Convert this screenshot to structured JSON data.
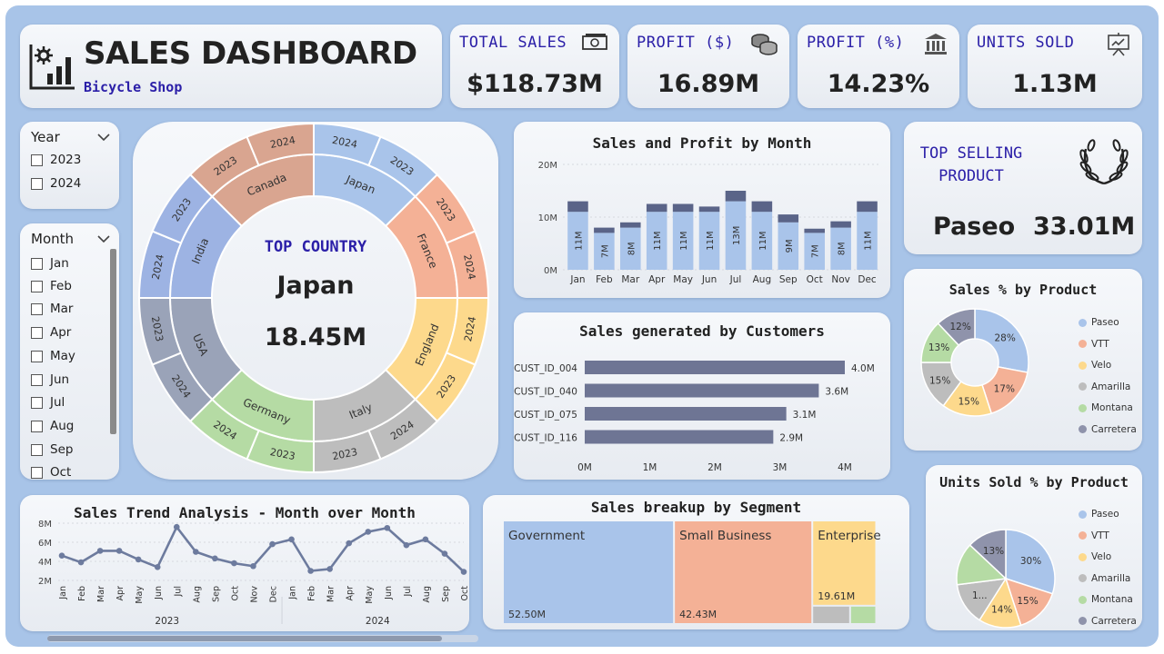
{
  "header": {
    "title": "SALES DASHBOARD",
    "subtitle": "Bicycle Shop"
  },
  "kpis": [
    {
      "title": "TOTAL SALES",
      "value": "$118.73M",
      "icon": "money-icon"
    },
    {
      "title": "PROFIT ($)",
      "value": "16.89M",
      "icon": "coins-icon"
    },
    {
      "title": "PROFIT (%)",
      "value": "14.23%",
      "icon": "bank-icon"
    },
    {
      "title": "UNITS SOLD",
      "value": "1.13M",
      "icon": "presentation-icon"
    }
  ],
  "year_slicer": {
    "title": "Year",
    "items": [
      "2023",
      "2024"
    ]
  },
  "month_slicer": {
    "title": "Month",
    "items": [
      "Jan",
      "Feb",
      "Mar",
      "Apr",
      "May",
      "Jun",
      "Jul",
      "Aug",
      "Sep",
      "Oct"
    ]
  },
  "top_country": {
    "label": "TOP COUNTRY",
    "name": "Japan",
    "value": "18.45M"
  },
  "sunburst": {
    "countries": [
      {
        "name": "Japan",
        "color": "#a9c4ea",
        "years": [
          "2024",
          "2023"
        ]
      },
      {
        "name": "France",
        "color": "#f4b196",
        "years": [
          "2023",
          "2024"
        ]
      },
      {
        "name": "England",
        "color": "#fdd98c",
        "years": [
          "2024",
          "2023"
        ]
      },
      {
        "name": "Italy",
        "color": "#bdbdbd",
        "years": [
          "2024",
          "2023"
        ]
      },
      {
        "name": "Germany",
        "color": "#b5dba4",
        "years": [
          "2023",
          "2024"
        ]
      },
      {
        "name": "USA",
        "color": "#9aa3b8",
        "years": [
          "2024",
          "2023"
        ]
      },
      {
        "name": "India",
        "color": "#9db3e3",
        "years": [
          "2024",
          "2023"
        ]
      },
      {
        "name": "Canada",
        "color": "#d9a590",
        "years": [
          "2023",
          "2024"
        ]
      }
    ]
  },
  "top_product": {
    "title_line1": "TOP SELLING",
    "title_line2": "PRODUCT",
    "name": "Paseo",
    "value": "33.01M"
  },
  "sales_customers": {
    "title": "Sales generated by Customers",
    "x_ticks": [
      "0M",
      "1M",
      "2M",
      "3M",
      "4M"
    ]
  },
  "sales_pct": {
    "title": "Sales % by Product"
  },
  "units_pct": {
    "title": "Units Sold % by Product"
  },
  "product_legend": [
    {
      "name": "Paseo",
      "color": "#a9c4ea"
    },
    {
      "name": "VTT",
      "color": "#f4b196"
    },
    {
      "name": "Velo",
      "color": "#fdd98c"
    },
    {
      "name": "Amarilla",
      "color": "#bdbdbd"
    },
    {
      "name": "Montana",
      "color": "#b5dba4"
    },
    {
      "name": "Carretera",
      "color": "#8f93ab"
    }
  ],
  "trend": {
    "title": "Sales Trend Analysis - Month over Month",
    "y_ticks": [
      "8M",
      "6M",
      "4M",
      "2M"
    ],
    "years": [
      "2023",
      "2024"
    ]
  },
  "segment": {
    "title": "Sales breakup by Segment"
  },
  "chart_data": [
    {
      "type": "bar",
      "title": "Sales and Profit by Month",
      "categories": [
        "Jan",
        "Feb",
        "Mar",
        "Apr",
        "May",
        "Jun",
        "Jul",
        "Aug",
        "Sep",
        "Oct",
        "Nov",
        "Dec"
      ],
      "series": [
        {
          "values": [
            11,
            7,
            8,
            11,
            11,
            11,
            13,
            11,
            9,
            7,
            8,
            11
          ],
          "color": "#a9c4ea"
        },
        {
          "values": [
            2,
            1,
            1,
            1.5,
            1.5,
            1,
            2,
            2,
            1.5,
            0.8,
            1.2,
            2
          ],
          "color": "#5a6488"
        }
      ],
      "labels": [
        "11M",
        "7M",
        "8M",
        "11M",
        "11M",
        "11M",
        "13M",
        "11M",
        "9M",
        "7M",
        "8M",
        "11M"
      ],
      "y_ticks": [
        "20M",
        "10M",
        "0M"
      ],
      "ylim": [
        0,
        20
      ]
    },
    {
      "type": "bar",
      "title": "Sales generated by Customers",
      "categories": [
        "CUST_ID_004",
        "CUST_ID_040",
        "CUST_ID_075",
        "CUST_ID_116"
      ],
      "values": [
        4.0,
        3.6,
        3.1,
        2.9
      ],
      "labels": [
        "4.0M",
        "3.6M",
        "3.1M",
        "2.9M"
      ],
      "xlim": [
        0,
        4
      ]
    },
    {
      "type": "pie",
      "title": "Sales % by Product",
      "categories": [
        "Paseo",
        "VTT",
        "Velo",
        "Amarilla",
        "Montana",
        "Carretera"
      ],
      "values": [
        28,
        17,
        15,
        15,
        13,
        12
      ],
      "labels": [
        "28%",
        "17%",
        "15%",
        "15%",
        "13%",
        "12%"
      ]
    },
    {
      "type": "pie",
      "title": "Units Sold % by Product",
      "categories": [
        "Paseo",
        "VTT",
        "Velo",
        "Amarilla",
        "Montana",
        "Carretera"
      ],
      "values": [
        30,
        15,
        14,
        14,
        14,
        13
      ],
      "labels": [
        "30%",
        "15%",
        "14%",
        "1...",
        "",
        "13%"
      ]
    },
    {
      "type": "line",
      "title": "Sales Trend Analysis - Month over Month",
      "x": [
        "Jan",
        "Feb",
        "Mar",
        "Apr",
        "May",
        "Jun",
        "Jul",
        "Aug",
        "Sep",
        "Oct",
        "Nov",
        "Dec",
        "Jan",
        "Feb",
        "Mar",
        "Apr",
        "May",
        "Jun",
        "Jul",
        "Aug",
        "Sep",
        "Oct"
      ],
      "values": [
        4.6,
        3.9,
        5.1,
        5.1,
        4.2,
        3.4,
        7.6,
        5.0,
        4.3,
        3.8,
        3.5,
        5.8,
        6.3,
        3.0,
        3.2,
        5.9,
        7.1,
        7.5,
        5.7,
        6.3,
        4.8,
        2.9
      ],
      "ylim": [
        0,
        9
      ]
    },
    {
      "type": "heatmap",
      "title": "Sales breakup by Segment",
      "categories": [
        "Government",
        "Small Business",
        "Enterprise"
      ],
      "values": [
        52.5,
        42.43,
        19.61
      ],
      "labels": [
        "52.50M",
        "42.43M",
        "19.61M"
      ],
      "colors": [
        "#a9c4ea",
        "#f4b196",
        "#fdd98c",
        "#bdbdbd",
        "#b5dba4"
      ]
    }
  ]
}
